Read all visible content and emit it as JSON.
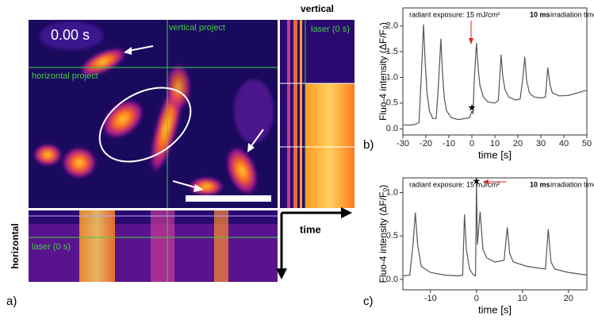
{
  "panel_a": {
    "timestamp": "0.00 s",
    "vertical_project": "vertical project",
    "horizontal_project": "horizontal project",
    "vertical_title": "vertical",
    "vertical_laser": "laser (0 s)",
    "horizontal_title": "horizontal",
    "horizontal_laser": "laser (0 s)",
    "time_label": "time",
    "panel_label": "a)"
  },
  "chart_data": [
    {
      "type": "line",
      "panel_label": "b)",
      "annotation": "radiant exposure: 15 mJ/cm²",
      "annotation_bold": "10 ms",
      "annotation_rest": "irradiation time",
      "xlabel": "time [s]",
      "ylabel": "Fluo-4 intensity (ΔF/F₀)",
      "xlim": [
        -30,
        50
      ],
      "xticks": [
        -30,
        -20,
        -10,
        0,
        10,
        20,
        30,
        40,
        50
      ],
      "ylim": [
        -0.12,
        2.35
      ],
      "yticks": [
        {
          "value": 0,
          "label": "0.0"
        },
        0.5,
        {
          "value": 1,
          "label": "1.0"
        },
        1.5,
        {
          "value": 2,
          "label": "2.0"
        }
      ],
      "x": [
        -30,
        -28,
        -25,
        -23,
        -22,
        -21,
        -20.3,
        -19.5,
        -18.5,
        -17,
        -15.5,
        -14.5,
        -13.5,
        -12.8,
        -12,
        -11,
        -9,
        -6,
        -3,
        -1,
        0,
        0.5,
        1,
        2,
        2.7,
        3.5,
        5,
        7,
        10,
        11.5,
        12.7,
        13.5,
        14.5,
        16,
        19,
        21,
        22.2,
        23,
        23.8,
        25,
        27,
        30,
        32,
        33,
        34,
        35,
        38,
        42,
        46,
        50
      ],
      "series": [
        {
          "color": "#555555",
          "values": [
            0.08,
            0.07,
            0.08,
            0.12,
            1.0,
            2.03,
            1.3,
            0.7,
            0.35,
            0.2,
            0.2,
            0.9,
            1.75,
            1.1,
            0.6,
            0.35,
            0.22,
            0.18,
            0.2,
            0.22,
            0.34,
            0.3,
            0.9,
            1.67,
            1.2,
            0.85,
            0.62,
            0.52,
            0.5,
            0.55,
            1.44,
            1.0,
            0.75,
            0.62,
            0.56,
            0.58,
            1.0,
            1.4,
            0.95,
            0.7,
            0.62,
            0.6,
            0.62,
            1.19,
            0.85,
            0.7,
            0.64,
            0.65,
            0.7,
            0.75
          ]
        }
      ]
    },
    {
      "type": "line",
      "panel_label": "c)",
      "annotation": "radiant exposure: 15 mJ/cm²",
      "annotation_bold": "10 ms",
      "annotation_rest": "irradiation time",
      "xlabel": "time [s]",
      "ylabel": "Fluo-4 intensity (ΔF/F₀)",
      "xlim": [
        -16,
        24
      ],
      "xticks": [
        -10,
        0,
        10,
        20
      ],
      "ylim": [
        -0.12,
        1.17
      ],
      "yticks": [
        {
          "value": 0,
          "label": "0.0"
        },
        0.5,
        {
          "value": 1,
          "label": "1.0"
        }
      ],
      "x": [
        -16,
        -14.5,
        -13.8,
        -13.3,
        -12.8,
        -12,
        -10,
        -7,
        -4,
        -3,
        -2.6,
        -2.2,
        -1.5,
        -0.8,
        -0.2,
        0,
        0.2,
        0.5,
        0.8,
        1.4,
        2.2,
        4,
        6,
        6.7,
        7.2,
        8,
        11,
        15,
        15.6,
        16.2,
        17,
        20,
        24
      ],
      "series": [
        {
          "color": "#555555",
          "values": [
            0.04,
            0.05,
            0.4,
            0.77,
            0.4,
            0.15,
            0.08,
            0.05,
            0.04,
            0.05,
            0.75,
            0.35,
            0.12,
            0.06,
            0.04,
            1.12,
            0.4,
            0.6,
            0.78,
            0.35,
            0.25,
            0.2,
            0.22,
            0.6,
            0.3,
            0.2,
            0.15,
            0.12,
            0.58,
            0.2,
            0.12,
            0.08,
            0.05
          ]
        }
      ]
    }
  ]
}
